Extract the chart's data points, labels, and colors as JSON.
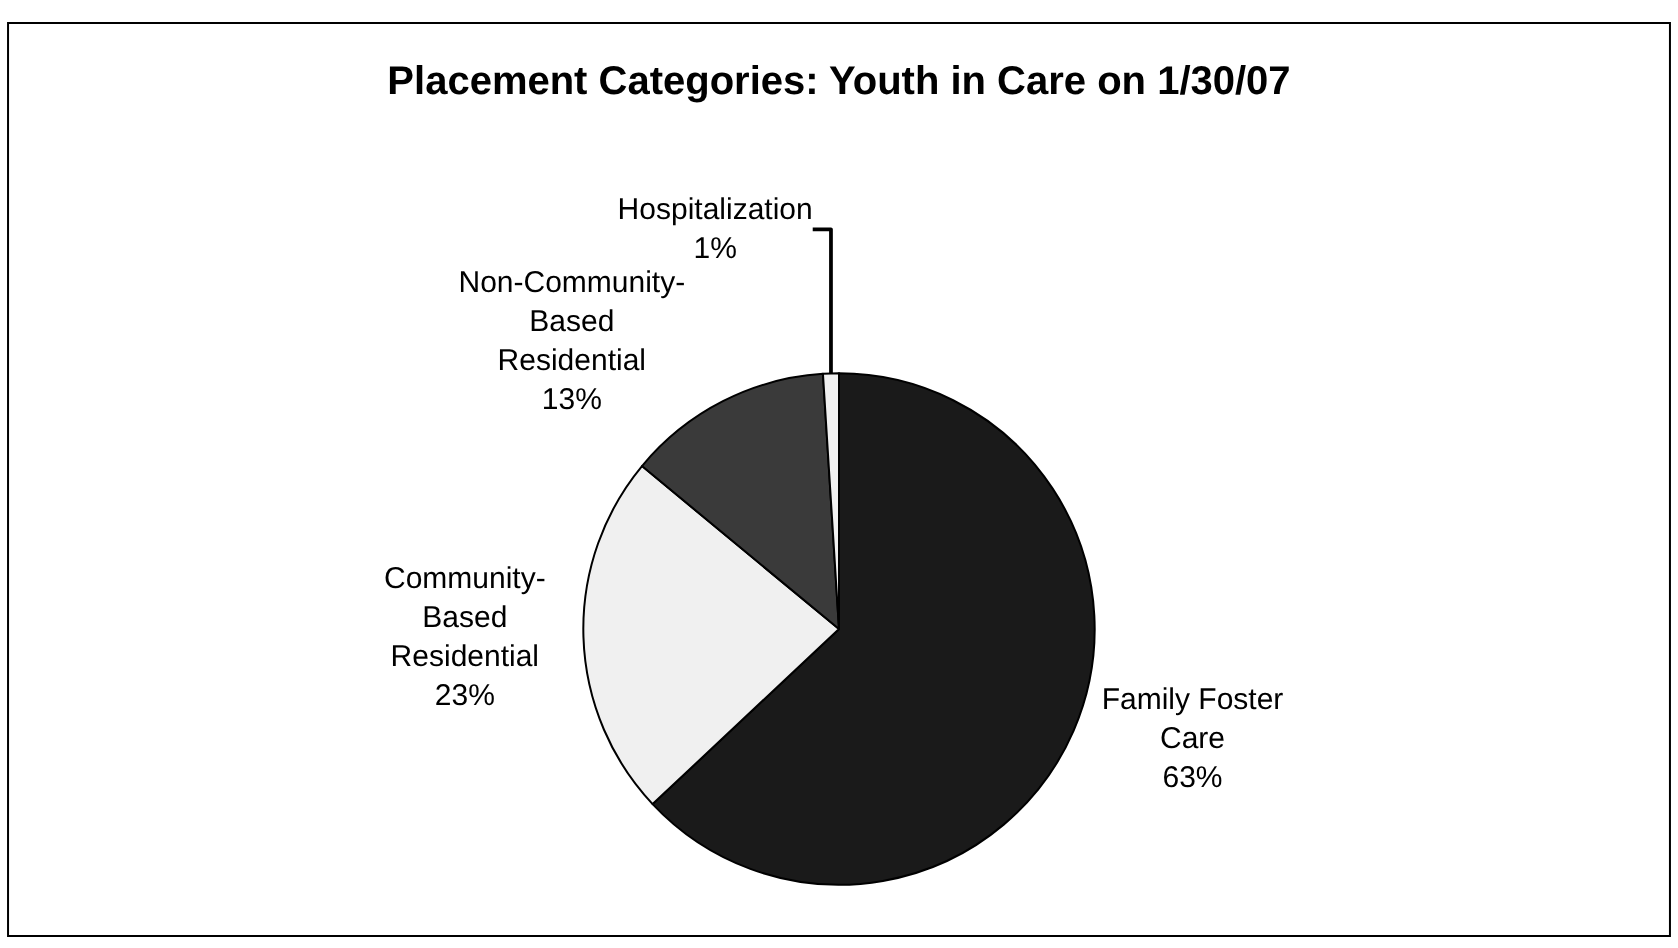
{
  "chart_data": {
    "type": "pie",
    "title": "Placement Categories: Youth in Care on 1/30/07",
    "categories": [
      "Family Foster Care",
      "Community-Based Residential",
      "Non-Community-Based Residential",
      "Hospitalization"
    ],
    "values": [
      63,
      23,
      13,
      1
    ],
    "value_labels": [
      "63%",
      "23%",
      "13%",
      "1%"
    ],
    "colors": [
      "#1a1a1a",
      "#f0f0f0",
      "#3a3a3a",
      "#f0f0f0"
    ],
    "legend": false
  }
}
